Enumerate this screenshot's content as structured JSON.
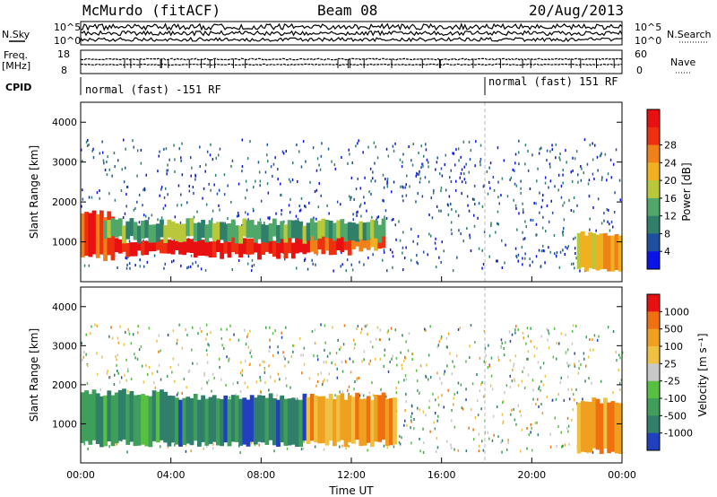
{
  "header": {
    "station": "McMurdo (fitACF)",
    "beam": "Beam 08",
    "date": "20/Aug/2013"
  },
  "strip": {
    "nsky_label": "N.Sky",
    "nsearch_label": "N.Search",
    "noise_left_ticks": [
      "10^5",
      "10^0"
    ],
    "noise_right_ticks": [
      "10^5",
      "10^0"
    ],
    "freq_label_1": "Freq.",
    "freq_label_2": "[MHz]",
    "freq_ticks": [
      "18",
      "8"
    ],
    "nave_label": "Nave",
    "nave_ticks": [
      "60",
      "0"
    ],
    "cpid_label": "CPID",
    "cpid_1": "normal (fast) -151 RF",
    "cpid_2": "normal (fast) 151 RF"
  },
  "chart_data": [
    {
      "type": "heatmap",
      "title": "",
      "ylabel": "Slant Range [km]",
      "xlabel": "",
      "x_ticks": [
        "00:00",
        "04:00",
        "08:00",
        "12:00",
        "16:00",
        "20:00",
        "00:00"
      ],
      "y_ticks": [
        "1000",
        "2000",
        "3000",
        "4000"
      ],
      "ylim": [
        0,
        4500
      ],
      "xlim_hours": [
        0,
        24
      ],
      "colorbar": {
        "label": "Power [dB]",
        "ticks": [
          "4",
          "8",
          "12",
          "16",
          "20",
          "24",
          "28"
        ],
        "colors": [
          "#0a14e8",
          "#1f4fa0",
          "#2f7f6a",
          "#4fa86a",
          "#b8c83a",
          "#f0b020",
          "#f08018",
          "#ee3010",
          "#e81010"
        ]
      },
      "bands": [
        {
          "t0": 0.0,
          "t1": 1.5,
          "r0": 600,
          "r1": 1700,
          "level": 7
        },
        {
          "t0": 1.5,
          "t1": 5.0,
          "r0": 700,
          "r1": 1050,
          "level": 8
        },
        {
          "t0": 5.0,
          "t1": 9.5,
          "r0": 650,
          "r1": 1050,
          "level": 8
        },
        {
          "t0": 9.5,
          "t1": 12.0,
          "r0": 750,
          "r1": 1250,
          "level": 7
        },
        {
          "t0": 12.0,
          "t1": 13.5,
          "r0": 850,
          "r1": 1300,
          "level": 6
        },
        {
          "t0": 1.0,
          "t1": 13.5,
          "r0": 1050,
          "r1": 1500,
          "level": 3
        },
        {
          "t0": 22.0,
          "t1": 24.0,
          "r0": 300,
          "r1": 1200,
          "level": 5
        }
      ]
    },
    {
      "type": "heatmap",
      "title": "",
      "ylabel": "Slant Range [km]",
      "xlabel": "Time UT",
      "x_ticks": [
        "00:00",
        "04:00",
        "08:00",
        "12:00",
        "16:00",
        "20:00",
        "00:00"
      ],
      "y_ticks": [
        "1000",
        "2000",
        "3000",
        "4000"
      ],
      "ylim": [
        0,
        4500
      ],
      "xlim_hours": [
        0,
        24
      ],
      "colorbar": {
        "label": "Velocity [m s⁻¹]",
        "ticks": [
          "1000",
          "500",
          "100",
          "25",
          "-25",
          "-100",
          "-500",
          "-1000"
        ],
        "colors": [
          "#2040c0",
          "#2f7f6a",
          "#3f9f5a",
          "#58c040",
          "#c8c8c8",
          "#f0c040",
          "#f0a020",
          "#f07010",
          "#e81010"
        ]
      },
      "bands": [
        {
          "t0": 0.0,
          "t1": 4.0,
          "r0": 500,
          "r1": 1800,
          "level": 2
        },
        {
          "t0": 4.0,
          "t1": 10.0,
          "r0": 500,
          "r1": 1700,
          "level": 1
        },
        {
          "t0": 10.0,
          "t1": 14.0,
          "r0": 500,
          "r1": 1700,
          "level": 6
        },
        {
          "t0": 22.0,
          "t1": 24.0,
          "r0": 300,
          "r1": 1600,
          "level": 6
        }
      ]
    }
  ]
}
